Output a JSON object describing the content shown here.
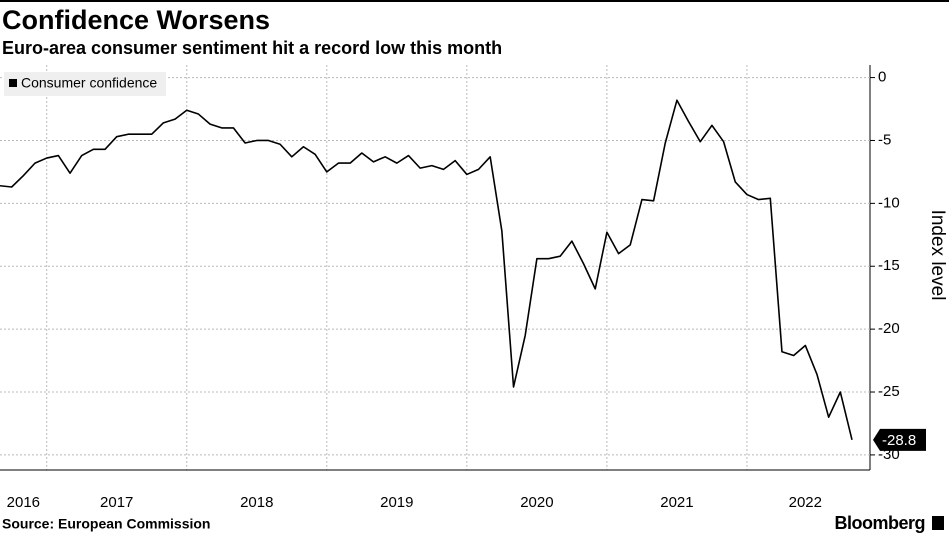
{
  "chart_data": {
    "type": "line",
    "title": "Confidence Worsens",
    "subtitle": "Euro-area consumer sentiment hit a record low this month",
    "source": "Source: European Commission",
    "brand": "Bloomberg",
    "y_label": "Index level",
    "categories": [
      null,
      null,
      "2016",
      null,
      null,
      null,
      null,
      null,
      null,
      null,
      "2017",
      null,
      null,
      null,
      null,
      null,
      null,
      null,
      null,
      null,
      null,
      null,
      "2018",
      null,
      null,
      null,
      null,
      null,
      null,
      null,
      null,
      null,
      null,
      null,
      "2019",
      null,
      null,
      null,
      null,
      null,
      null,
      null,
      null,
      null,
      null,
      null,
      "2020",
      null,
      null,
      null,
      null,
      null,
      null,
      null,
      null,
      null,
      null,
      null,
      "2021",
      null,
      null,
      null,
      null,
      null,
      null,
      null,
      null,
      null,
      null,
      "2022",
      null,
      null,
      null,
      null
    ],
    "series": [
      {
        "name": "Consumer confidence",
        "color": "#000000",
        "values": [
          -8.6,
          -8.7,
          -7.8,
          -6.8,
          -6.4,
          -6.2,
          -7.6,
          -6.2,
          -5.7,
          -5.7,
          -4.7,
          -4.5,
          -4.5,
          -4.5,
          -3.6,
          -3.3,
          -2.6,
          -2.9,
          -3.7,
          -4.0,
          -4.0,
          -5.2,
          -5.0,
          -5.0,
          -5.3,
          -6.3,
          -5.5,
          -6.1,
          -7.5,
          -6.8,
          -6.8,
          -6.0,
          -6.7,
          -6.3,
          -6.8,
          -6.2,
          -7.2,
          -7.0,
          -7.3,
          -6.6,
          -7.7,
          -7.3,
          -6.3,
          -12.2,
          -24.6,
          -20.5,
          -14.4,
          -14.4,
          -14.2,
          -13.0,
          -14.8,
          -16.8,
          -12.3,
          -14.0,
          -13.3,
          -9.7,
          -9.8,
          -5.2,
          -1.8,
          -3.5,
          -5.1,
          -3.8,
          -5.1,
          -8.3,
          -9.3,
          -9.7,
          -9.6,
          -21.8,
          -22.1,
          -21.3,
          -23.6,
          -27.0,
          -25.0,
          -28.8
        ]
      }
    ],
    "ylim": [
      -31.2,
      1
    ],
    "yticks": [
      0,
      -5,
      -10,
      -15,
      -20,
      -25,
      -30
    ],
    "grid": true,
    "legend": "top-left"
  }
}
